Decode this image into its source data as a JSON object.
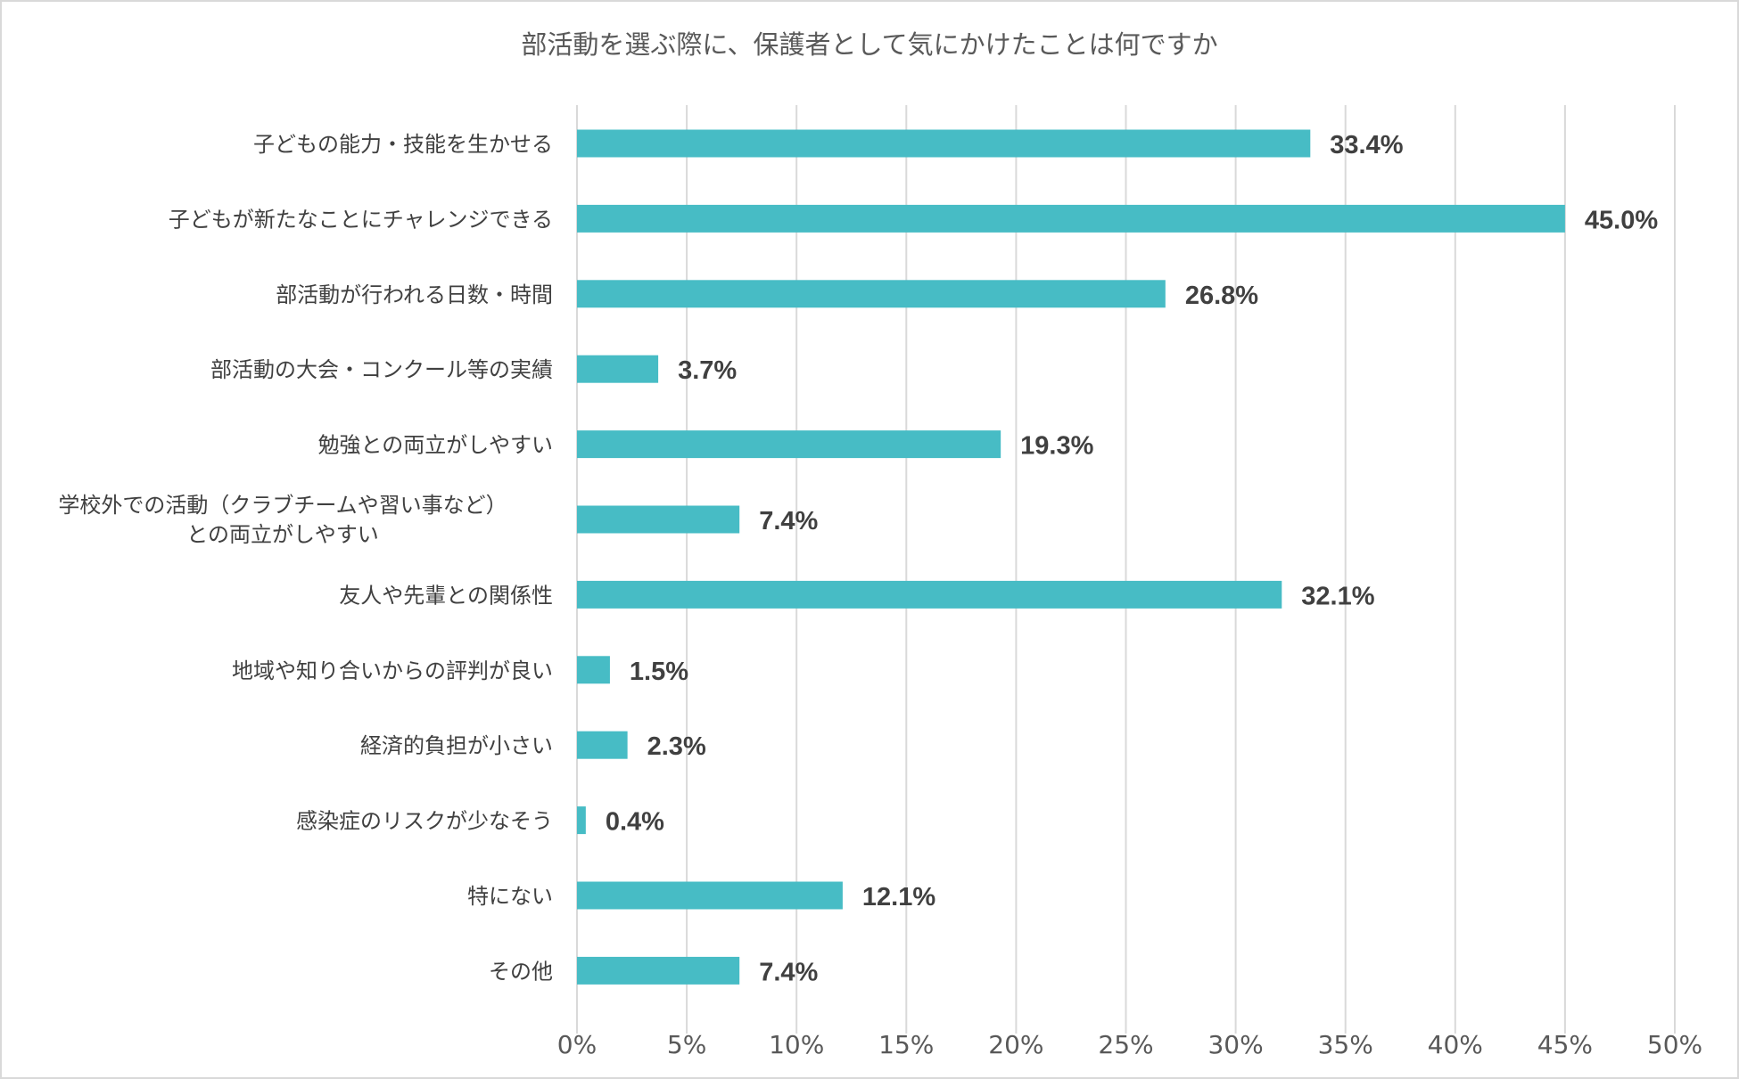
{
  "chart_data": {
    "type": "bar",
    "orientation": "horizontal",
    "title": "部活動を選ぶ際に、保護者として気にかけたことは何ですか",
    "categories": [
      "子どもの能力・技能を生かせる",
      "子どもが新たなことにチャレンジできる",
      "部活動が行われる日数・時間",
      "部活動の大会・コンクール等の実績",
      "勉強との両立がしやすい",
      "学校外での活動（クラブチームや習い事など）\nとの両立がしやすい",
      "友人や先輩との関係性",
      "地域や知り合いからの評判が良い",
      "経済的負担が小さい",
      "感染症のリスクが少なそう",
      "特にない",
      "その他"
    ],
    "values": [
      33.4,
      45.0,
      26.8,
      3.7,
      19.3,
      7.4,
      32.1,
      1.5,
      2.3,
      0.4,
      12.1,
      7.4
    ],
    "value_labels": [
      "33.4%",
      "45.0%",
      "26.8%",
      "3.7%",
      "19.3%",
      "7.4%",
      "32.1%",
      "1.5%",
      "2.3%",
      "0.4%",
      "12.1%",
      "7.4%"
    ],
    "xlim": [
      0,
      50
    ],
    "x_ticks": [
      0,
      5,
      10,
      15,
      20,
      25,
      30,
      35,
      40,
      45,
      50
    ],
    "x_tick_labels": [
      "0%",
      "5%",
      "10%",
      "15%",
      "20%",
      "25%",
      "30%",
      "35%",
      "40%",
      "45%",
      "50%"
    ],
    "grid": true,
    "legend": "none",
    "bar_color": "#47bcc5"
  }
}
